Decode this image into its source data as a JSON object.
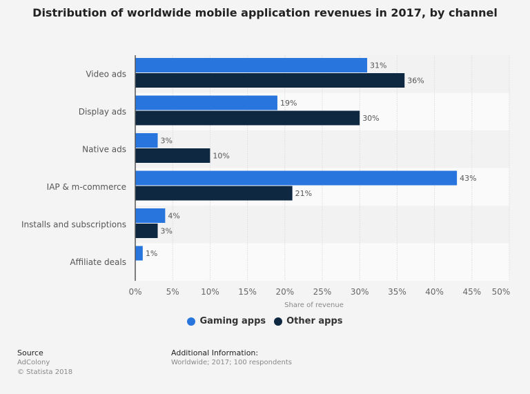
{
  "chart_data": {
    "type": "bar",
    "orientation": "horizontal",
    "title": "Distribution of worldwide mobile application revenues in 2017, by channel",
    "xlabel": "Share of revenue",
    "ylabel": "",
    "xlim": [
      0,
      50
    ],
    "xticks": [
      "0%",
      "5%",
      "10%",
      "15%",
      "20%",
      "25%",
      "30%",
      "35%",
      "40%",
      "45%",
      "50%"
    ],
    "grid": true,
    "legend_position": "bottom",
    "categories": [
      "Video ads",
      "Display ads",
      "Native ads",
      "IAP & m-commerce",
      "Installs and subscriptions",
      "Affiliate deals"
    ],
    "series": [
      {
        "name": "Gaming apps",
        "color": "#2876dd",
        "values": [
          31,
          19,
          3,
          43,
          4,
          1
        ]
      },
      {
        "name": "Other apps",
        "color": "#0f2841",
        "values": [
          36,
          30,
          10,
          21,
          3,
          null
        ]
      }
    ],
    "value_suffix": "%"
  },
  "footer": {
    "source_heading": "Source",
    "source": "AdColony",
    "copyright": "© Statista 2018",
    "info_heading": "Additional Information:",
    "info": "Worldwide; 2017; 100 respondents"
  }
}
